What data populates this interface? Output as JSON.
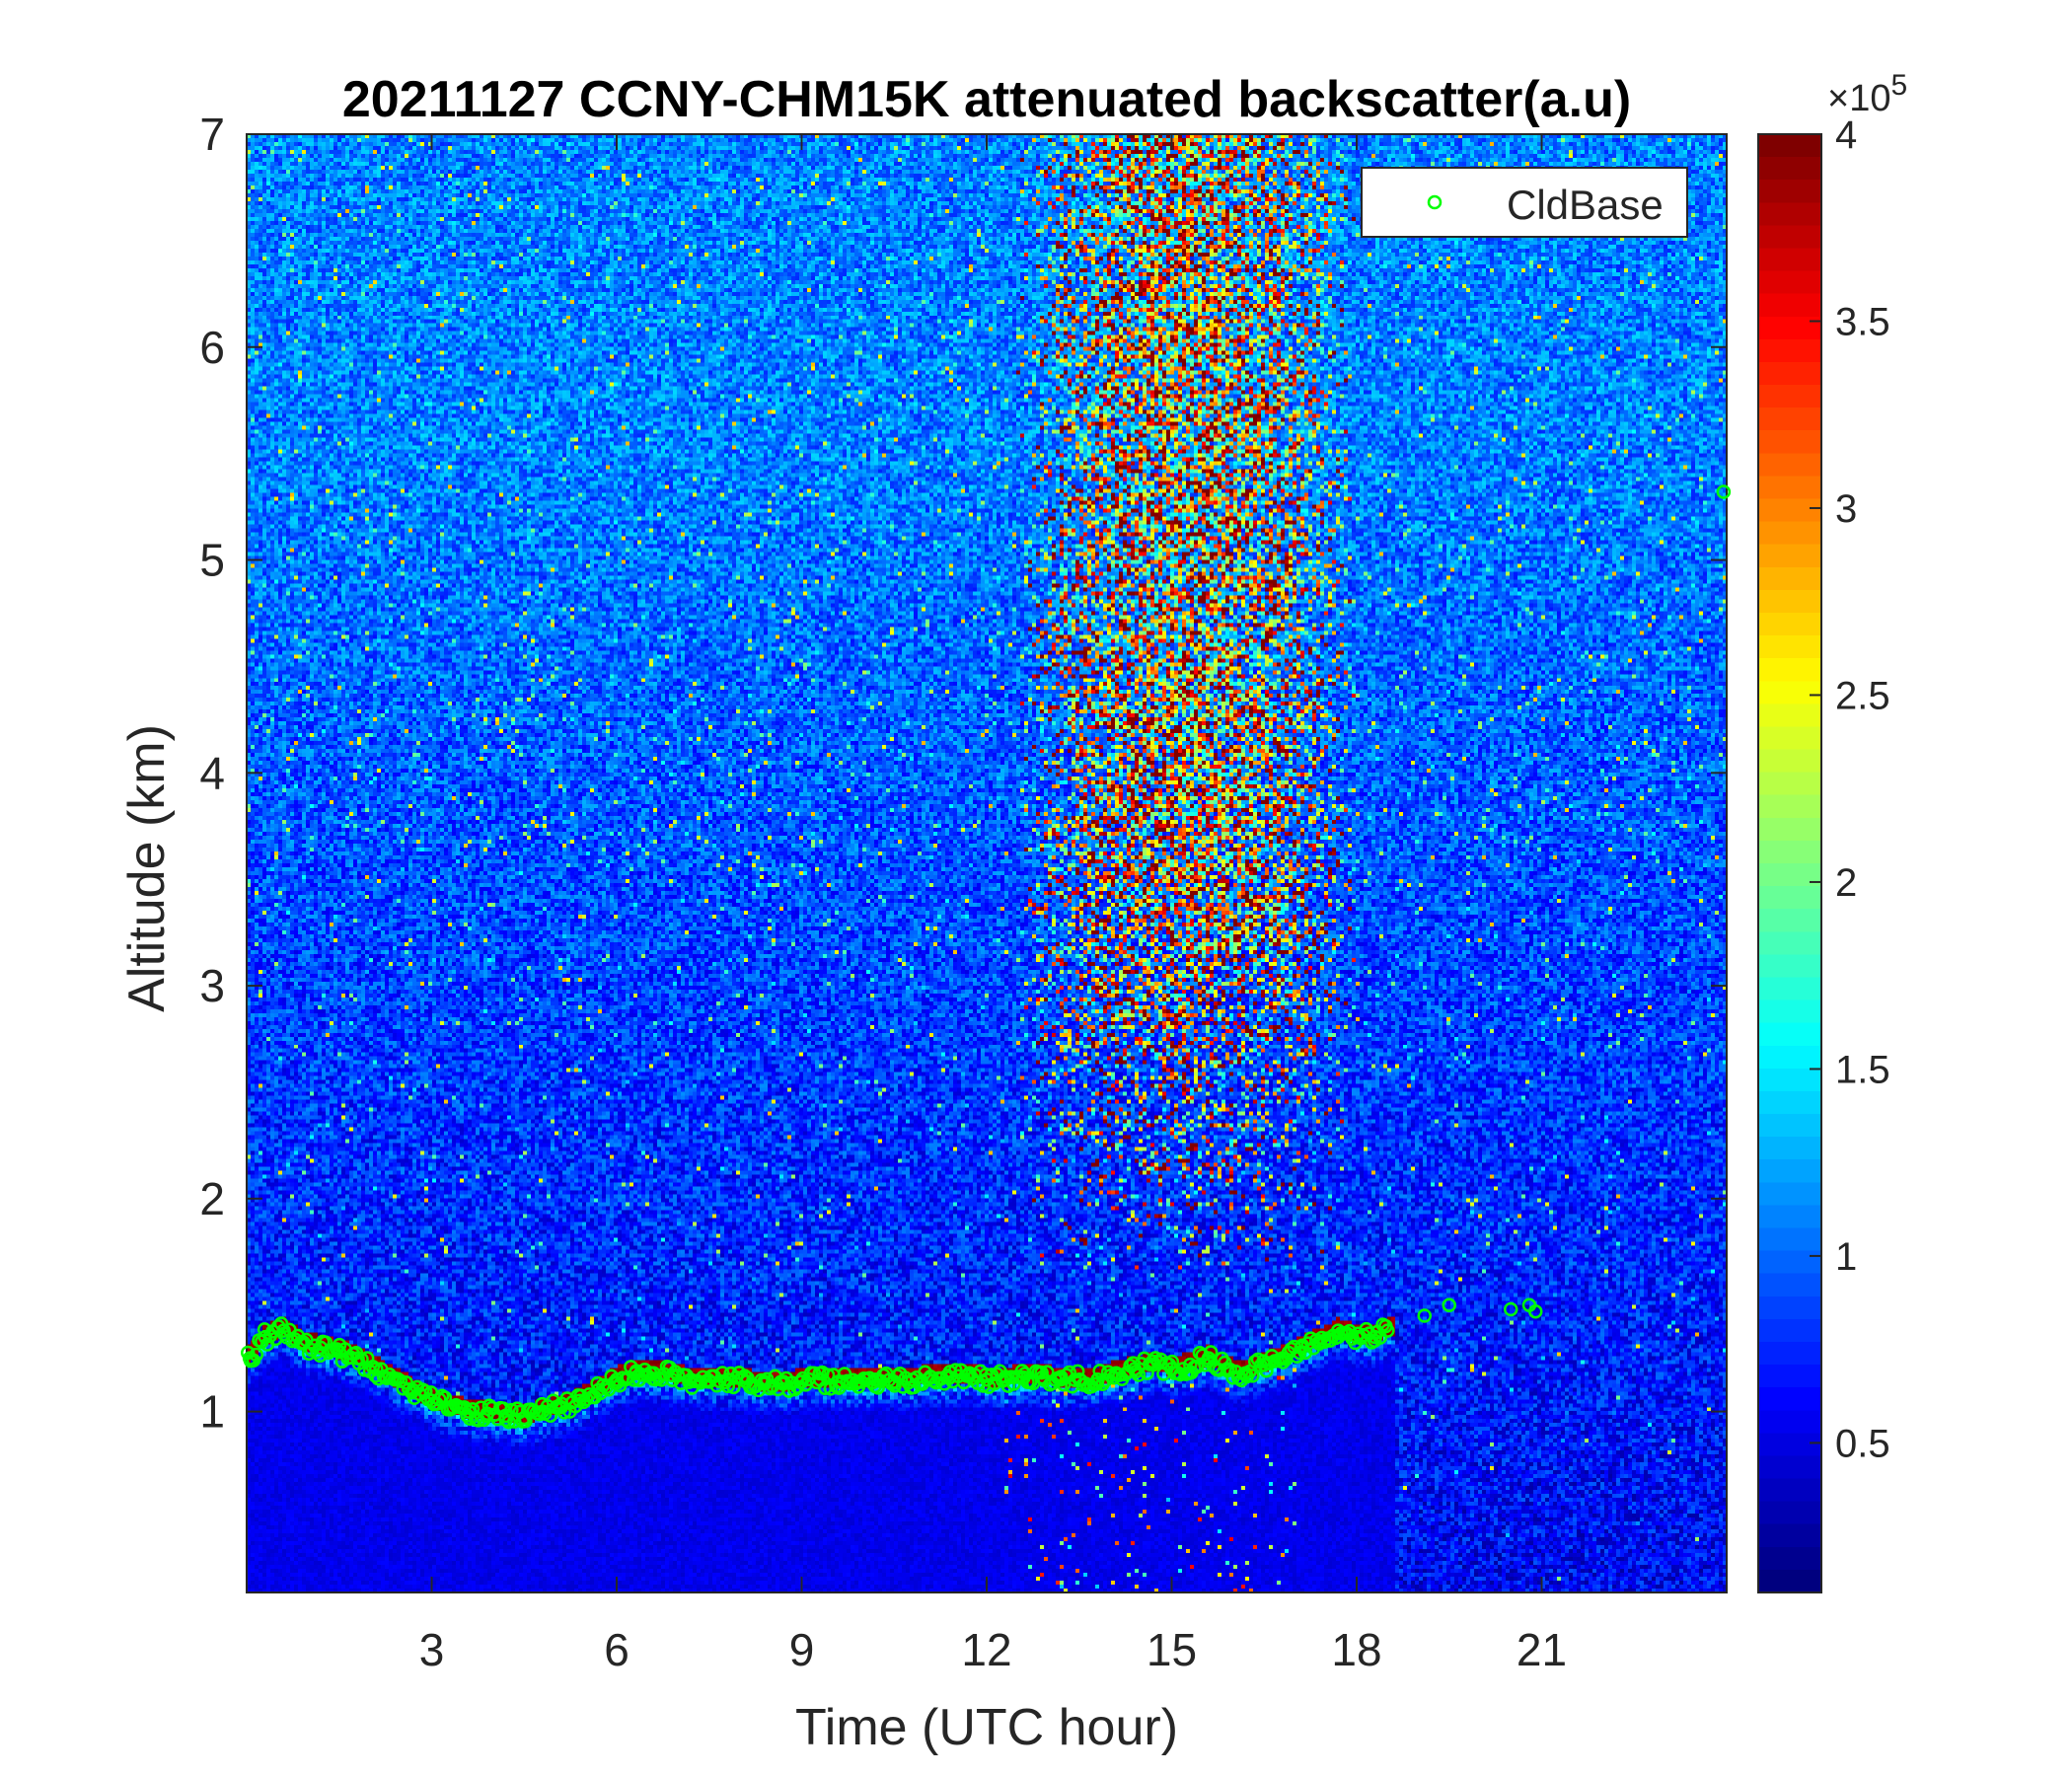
{
  "chart_data": {
    "type": "heatmap",
    "title": "20211127 CCNY-CHM15K attenuated backscatter(a.u)",
    "xlabel": "Time (UTC hour)",
    "ylabel": "Altitude (km)",
    "xlim": [
      0,
      24
    ],
    "ylim": [
      0.15,
      7
    ],
    "x_ticks": [
      3,
      6,
      9,
      12,
      15,
      18,
      21
    ],
    "x_tick_labels": [
      "3",
      "6",
      "9",
      "12",
      "15",
      "18",
      "21"
    ],
    "y_ticks": [
      1,
      2,
      3,
      4,
      5,
      6,
      7
    ],
    "y_tick_labels": [
      "1",
      "2",
      "3",
      "4",
      "5",
      "6",
      "7"
    ],
    "colorbar": {
      "colormap": "jet",
      "clim": [
        10000,
        400000
      ],
      "ticks": [
        50000,
        100000,
        150000,
        200000,
        250000,
        300000,
        350000,
        400000
      ],
      "tick_labels": [
        "0.5",
        "1",
        "1.5",
        "2",
        "2.5",
        "3",
        "3.5",
        "4"
      ],
      "exponent_prefix": "×10",
      "exponent": "5"
    },
    "legend": {
      "entries": [
        "CldBase"
      ],
      "placement": "top-right"
    },
    "series": [
      {
        "name": "CldBase",
        "marker": "circle-open",
        "color": "#00ff00",
        "x": [
          0.05,
          0.3,
          0.6,
          0.9,
          1.2,
          1.5,
          1.8,
          2.1,
          2.4,
          2.7,
          3.0,
          3.3,
          3.6,
          3.9,
          4.2,
          4.5,
          4.8,
          5.1,
          5.4,
          5.7,
          6.0,
          6.3,
          6.6,
          6.9,
          7.2,
          7.5,
          7.8,
          8.1,
          8.4,
          8.7,
          9.0,
          9.3,
          9.6,
          9.9,
          10.2,
          10.5,
          10.8,
          11.1,
          11.4,
          11.7,
          12.0,
          12.3,
          12.6,
          12.9,
          13.2,
          13.5,
          13.8,
          14.1,
          14.4,
          14.7,
          15.0,
          15.3,
          15.6,
          15.9,
          16.2,
          16.5,
          16.8,
          17.1,
          17.4,
          17.7,
          18.0,
          18.3,
          18.5,
          19.1,
          19.5,
          20.5,
          20.8,
          20.9,
          23.95
        ],
        "y": [
          1.25,
          1.35,
          1.38,
          1.32,
          1.3,
          1.28,
          1.25,
          1.2,
          1.15,
          1.1,
          1.05,
          1.02,
          1.0,
          0.99,
          0.98,
          0.97,
          1.0,
          1.02,
          1.05,
          1.1,
          1.15,
          1.18,
          1.18,
          1.17,
          1.15,
          1.14,
          1.15,
          1.14,
          1.13,
          1.13,
          1.14,
          1.15,
          1.14,
          1.14,
          1.15,
          1.14,
          1.15,
          1.16,
          1.16,
          1.17,
          1.15,
          1.15,
          1.16,
          1.16,
          1.15,
          1.15,
          1.15,
          1.18,
          1.2,
          1.22,
          1.2,
          1.22,
          1.25,
          1.2,
          1.18,
          1.22,
          1.25,
          1.3,
          1.33,
          1.38,
          1.35,
          1.35,
          1.38,
          1.45,
          1.5,
          1.48,
          1.5,
          1.47,
          5.32
        ]
      }
    ],
    "features": [
      {
        "description": "dense aerosol/cloud layer",
        "x_range": [
          0,
          18.5
        ],
        "top_km": 1.4,
        "base_km": 1.0
      },
      {
        "description": "high backscatter plume",
        "x_range": [
          12.5,
          18
        ],
        "altitude_range": [
          1.6,
          7
        ]
      }
    ]
  }
}
